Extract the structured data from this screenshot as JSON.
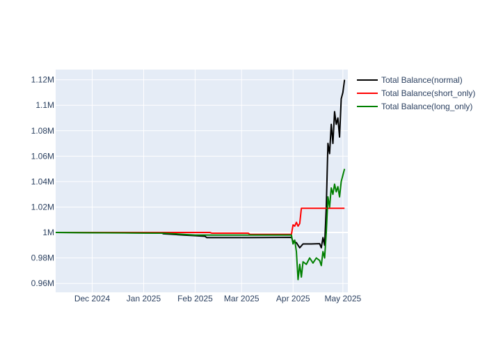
{
  "chart_data": {
    "type": "line",
    "title": "",
    "xlabel": "",
    "ylabel": "",
    "x_range": [
      "2024-11-09",
      "2025-05-04"
    ],
    "ylim": [
      0.953,
      1.128
    ],
    "grid": true,
    "legend_position": "top-right",
    "x_ticks": [
      {
        "date": "2024-12-01",
        "label": "Dec 2024"
      },
      {
        "date": "2025-01-01",
        "label": "Jan 2025"
      },
      {
        "date": "2025-02-01",
        "label": "Feb 2025"
      },
      {
        "date": "2025-03-01",
        "label": "Mar 2025"
      },
      {
        "date": "2025-04-01",
        "label": "Apr 2025"
      },
      {
        "date": "2025-05-01",
        "label": "May 2025"
      }
    ],
    "y_ticks": [
      {
        "value": 0.96,
        "label": "0.96M"
      },
      {
        "value": 0.98,
        "label": "0.98M"
      },
      {
        "value": 1.0,
        "label": "1M"
      },
      {
        "value": 1.02,
        "label": "1.02M"
      },
      {
        "value": 1.04,
        "label": "1.04M"
      },
      {
        "value": 1.06,
        "label": "1.06M"
      },
      {
        "value": 1.08,
        "label": "1.08M"
      },
      {
        "value": 1.1,
        "label": "1.1M"
      },
      {
        "value": 1.12,
        "label": "1.12M"
      }
    ],
    "series": [
      {
        "name": "Total Balance(normal)",
        "color": "#000000",
        "points": [
          [
            "2024-11-09",
            1.0
          ],
          [
            "2024-12-15",
            0.9998
          ],
          [
            "2025-01-12",
            0.9995
          ],
          [
            "2025-01-13",
            0.999
          ],
          [
            "2025-01-25",
            0.998
          ],
          [
            "2025-02-01",
            0.9975
          ],
          [
            "2025-02-07",
            0.997
          ],
          [
            "2025-02-08",
            0.996
          ],
          [
            "2025-03-05",
            0.996
          ],
          [
            "2025-03-31",
            0.9962
          ],
          [
            "2025-04-01",
            0.993
          ],
          [
            "2025-04-03",
            0.992
          ],
          [
            "2025-04-05",
            0.988
          ],
          [
            "2025-04-07",
            0.991
          ],
          [
            "2025-04-12",
            0.991
          ],
          [
            "2025-04-17",
            0.9912
          ],
          [
            "2025-04-18",
            0.988
          ],
          [
            "2025-04-19",
            0.996
          ],
          [
            "2025-04-20",
            0.99
          ],
          [
            "2025-04-21",
            1.02
          ],
          [
            "2025-04-22",
            1.07
          ],
          [
            "2025-04-23",
            1.062
          ],
          [
            "2025-04-24",
            1.085
          ],
          [
            "2025-04-25",
            1.07
          ],
          [
            "2025-04-26",
            1.095
          ],
          [
            "2025-04-27",
            1.085
          ],
          [
            "2025-04-28",
            1.09
          ],
          [
            "2025-04-29",
            1.075
          ],
          [
            "2025-04-30",
            1.105
          ],
          [
            "2025-05-01",
            1.11
          ],
          [
            "2025-05-02",
            1.12
          ]
        ]
      },
      {
        "name": "Total Balance(short_only)",
        "color": "#ff0000",
        "points": [
          [
            "2024-11-09",
            1.0
          ],
          [
            "2025-01-10",
            1.0
          ],
          [
            "2025-02-10",
            1.0
          ],
          [
            "2025-02-11",
            0.9995
          ],
          [
            "2025-03-05",
            0.9995
          ],
          [
            "2025-03-06",
            0.9985
          ],
          [
            "2025-03-31",
            0.9985
          ],
          [
            "2025-04-01",
            1.006
          ],
          [
            "2025-04-02",
            1.005
          ],
          [
            "2025-04-03",
            1.008
          ],
          [
            "2025-04-04",
            1.005
          ],
          [
            "2025-04-05",
            1.007
          ],
          [
            "2025-04-06",
            1.019
          ],
          [
            "2025-05-02",
            1.019
          ]
        ]
      },
      {
        "name": "Total Balance(long_only)",
        "color": "#008000",
        "points": [
          [
            "2024-11-09",
            1.0
          ],
          [
            "2025-01-13",
            0.9995
          ],
          [
            "2025-02-01",
            0.998
          ],
          [
            "2025-03-05",
            0.998
          ],
          [
            "2025-03-31",
            0.998
          ],
          [
            "2025-04-01",
            0.991
          ],
          [
            "2025-04-02",
            0.994
          ],
          [
            "2025-04-03",
            0.985
          ],
          [
            "2025-04-04",
            0.963
          ],
          [
            "2025-04-05",
            0.975
          ],
          [
            "2025-04-06",
            0.965
          ],
          [
            "2025-04-07",
            0.977
          ],
          [
            "2025-04-09",
            0.975
          ],
          [
            "2025-04-11",
            0.98
          ],
          [
            "2025-04-13",
            0.976
          ],
          [
            "2025-04-15",
            0.98
          ],
          [
            "2025-04-17",
            0.978
          ],
          [
            "2025-04-18",
            0.974
          ],
          [
            "2025-04-19",
            0.985
          ],
          [
            "2025-04-20",
            0.98
          ],
          [
            "2025-04-21",
            1.0
          ],
          [
            "2025-04-22",
            1.028
          ],
          [
            "2025-04-23",
            1.02
          ],
          [
            "2025-04-24",
            1.035
          ],
          [
            "2025-04-25",
            1.03
          ],
          [
            "2025-04-26",
            1.038
          ],
          [
            "2025-04-27",
            1.032
          ],
          [
            "2025-04-28",
            1.036
          ],
          [
            "2025-04-29",
            1.028
          ],
          [
            "2025-04-30",
            1.04
          ],
          [
            "2025-05-01",
            1.045
          ],
          [
            "2025-05-02",
            1.05
          ]
        ]
      }
    ]
  },
  "style": {
    "plot_bg": "#e5ecf6",
    "grid_color": "#ffffff",
    "text_color": "#2a3f5f"
  }
}
